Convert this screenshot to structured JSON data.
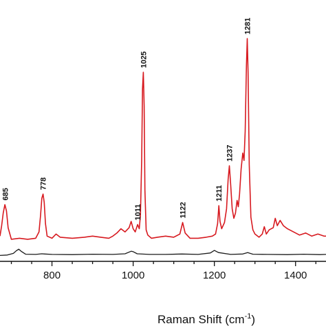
{
  "chart_data": {
    "type": "line",
    "xlabel": "Raman Shift (cm",
    "xlabel_sup": "-1",
    "xlabel_close": ")",
    "ylabel": "",
    "xlim": [
      672,
      1475
    ],
    "ylim": [
      -0.6,
      10.2
    ],
    "x_ticks": [
      800,
      1000,
      1200,
      1400
    ],
    "grid": false,
    "colors": {
      "top": "#d7191f",
      "bottom": "#1a1a1a",
      "axis": "#111111"
    },
    "series": [
      {
        "x": [
          672,
          676,
          680,
          684,
          688,
          692,
          700,
          720,
          740,
          760,
          768,
          772,
          775,
          778,
          781,
          784,
          788,
          800,
          810,
          820,
          850,
          880,
          900,
          920,
          940,
          950,
          960,
          970,
          980,
          990,
          995,
          1000,
          1005,
          1011,
          1015,
          1018,
          1021,
          1023,
          1025,
          1027,
          1029,
          1032,
          1036,
          1045,
          1060,
          1080,
          1100,
          1115,
          1122,
          1128,
          1140,
          1160,
          1180,
          1195,
          1203,
          1208,
          1211,
          1214,
          1218,
          1225,
          1230,
          1234,
          1237,
          1240,
          1244,
          1248,
          1252,
          1256,
          1259,
          1262,
          1266,
          1270,
          1273,
          1276,
          1279,
          1281,
          1283,
          1286,
          1290,
          1295,
          1300,
          1310,
          1318,
          1323,
          1328,
          1335,
          1345,
          1350,
          1355,
          1362,
          1370,
          1380,
          1395,
          1410,
          1425,
          1440,
          1455,
          1470,
          1475
        ],
        "y": [
          0.6,
          1.1,
          1.7,
          2.1,
          1.8,
          1.0,
          0.45,
          0.5,
          0.45,
          0.5,
          0.8,
          1.6,
          2.4,
          2.6,
          2.2,
          1.2,
          0.6,
          0.5,
          0.7,
          0.55,
          0.5,
          0.55,
          0.6,
          0.55,
          0.5,
          0.6,
          0.75,
          0.95,
          0.8,
          1.0,
          1.3,
          0.95,
          0.8,
          1.15,
          0.95,
          1.6,
          4.2,
          7.6,
          8.4,
          6.8,
          2.8,
          0.9,
          0.65,
          0.5,
          0.55,
          0.6,
          0.55,
          0.7,
          1.25,
          0.75,
          0.5,
          0.5,
          0.55,
          0.6,
          0.7,
          1.2,
          2.05,
          1.3,
          0.95,
          1.25,
          1.9,
          3.3,
          3.95,
          3.1,
          1.9,
          1.45,
          1.7,
          2.3,
          2.0,
          2.6,
          3.8,
          4.55,
          4.2,
          5.6,
          8.7,
          10.0,
          8.4,
          4.0,
          1.5,
          0.9,
          0.7,
          0.55,
          0.7,
          1.05,
          0.7,
          0.9,
          1.0,
          1.45,
          1.1,
          1.35,
          1.1,
          0.95,
          0.8,
          0.65,
          0.75,
          0.6,
          0.7,
          0.6,
          0.6
        ]
      },
      {
        "x": [
          672,
          690,
          705,
          712,
          718,
          724,
          735,
          760,
          775,
          782,
          800,
          850,
          900,
          950,
          980,
          995,
          1000,
          1010,
          1040,
          1080,
          1120,
          1160,
          1190,
          1200,
          1210,
          1240,
          1270,
          1282,
          1295,
          1330,
          1380,
          1420,
          1460,
          1475
        ],
        "y": [
          -0.32,
          -0.3,
          -0.22,
          -0.1,
          -0.02,
          -0.12,
          -0.26,
          -0.27,
          -0.24,
          -0.25,
          -0.27,
          -0.28,
          -0.26,
          -0.27,
          -0.24,
          -0.12,
          -0.14,
          -0.24,
          -0.27,
          -0.27,
          -0.25,
          -0.27,
          -0.2,
          -0.08,
          -0.18,
          -0.27,
          -0.25,
          -0.18,
          -0.26,
          -0.27,
          -0.28,
          -0.26,
          -0.28,
          -0.27
        ]
      }
    ],
    "annotations": [
      {
        "text": "685",
        "x": 685,
        "y": 2.1
      },
      {
        "text": "778",
        "x": 778,
        "y": 2.6
      },
      {
        "text": "1011",
        "x": 1011,
        "y": 1.15
      },
      {
        "text": "1025",
        "x": 1025,
        "y": 8.4
      },
      {
        "text": "1122",
        "x": 1122,
        "y": 1.25
      },
      {
        "text": "1211",
        "x": 1211,
        "y": 2.05
      },
      {
        "text": "1237",
        "x": 1237,
        "y": 3.95
      },
      {
        "text": "1281",
        "x": 1281,
        "y": 10.0
      }
    ]
  }
}
